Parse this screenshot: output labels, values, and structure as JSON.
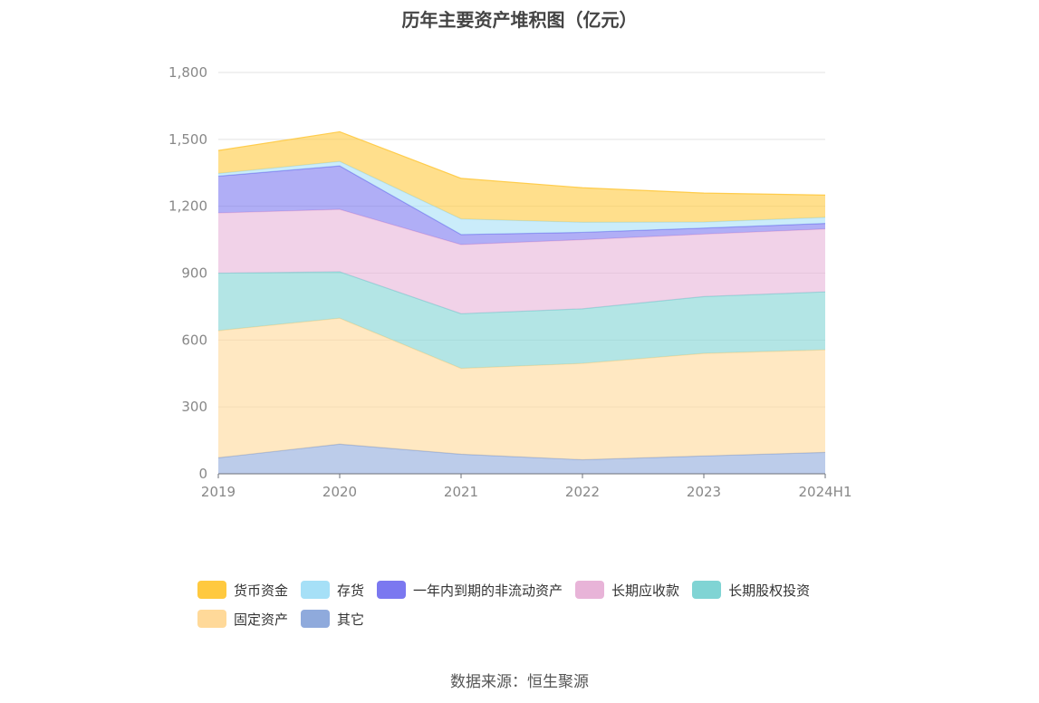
{
  "title": "历年主要资产堆积图（亿元）",
  "source": "数据来源：恒生聚源",
  "chart_data": {
    "type": "area",
    "stacked": true,
    "categories": [
      "2019",
      "2020",
      "2021",
      "2022",
      "2023",
      "2024H1"
    ],
    "ylim": [
      0,
      1800
    ],
    "yticks": [
      "0",
      "300",
      "600",
      "900",
      "1,200",
      "1,500",
      "1,800"
    ],
    "ytick_values": [
      0,
      300,
      600,
      900,
      1200,
      1500,
      1800
    ],
    "grid": true,
    "legend_position": "bottom",
    "series": [
      {
        "name": "其它",
        "color": "#8faadc",
        "values": [
          72,
          133,
          88,
          63,
          80,
          96
        ]
      },
      {
        "name": "固定资产",
        "color": "#ffd999",
        "values": [
          570,
          565,
          385,
          432,
          460,
          460
        ]
      },
      {
        "name": "长期股权投资",
        "color": "#80d4d4",
        "values": [
          258,
          208,
          245,
          245,
          255,
          260
        ]
      },
      {
        "name": "长期应收款",
        "color": "#e8b4d8",
        "values": [
          270,
          280,
          310,
          310,
          280,
          282
        ]
      },
      {
        "name": "一年内到期的非流动资产",
        "color": "#7b78f0",
        "values": [
          165,
          195,
          45,
          33,
          27,
          25
        ]
      },
      {
        "name": "存货",
        "color": "#a6e0f7",
        "values": [
          12,
          20,
          70,
          45,
          27,
          27
        ]
      },
      {
        "name": "货币资金",
        "color": "#ffc93f",
        "values": [
          103,
          133,
          182,
          155,
          130,
          100
        ]
      }
    ]
  },
  "legend_order": [
    {
      "name": "货币资金",
      "color": "#ffc93f"
    },
    {
      "name": "存货",
      "color": "#a6e0f7"
    },
    {
      "name": "一年内到期的非流动资产",
      "color": "#7b78f0"
    },
    {
      "name": "长期应收款",
      "color": "#e8b4d8"
    },
    {
      "name": "长期股权投资",
      "color": "#80d4d4"
    },
    {
      "name": "固定资产",
      "color": "#ffd999"
    },
    {
      "name": "其它",
      "color": "#8faadc"
    }
  ]
}
